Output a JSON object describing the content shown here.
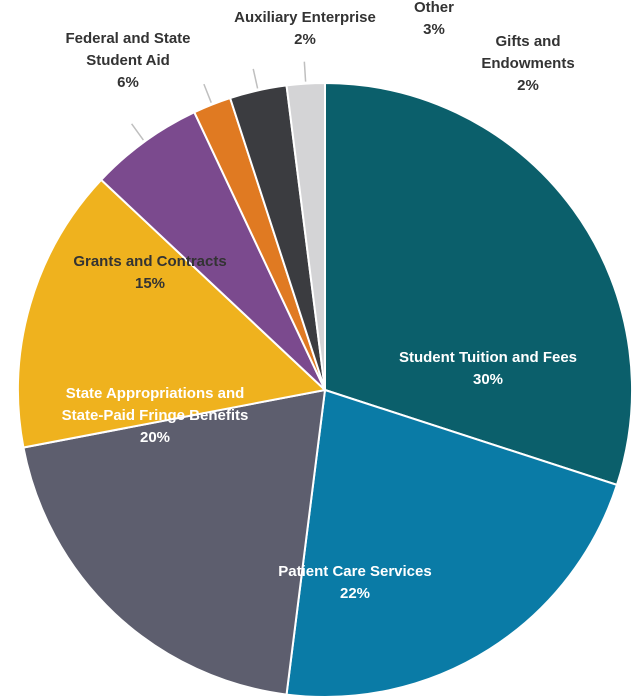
{
  "chart_data": {
    "type": "pie",
    "start_angle_deg": 0,
    "direction": "clockwise",
    "slices": [
      {
        "lines": [
          "Student Tuition and Fees"
        ],
        "value_label": "30%",
        "value": 30,
        "color": "#0b5f6b",
        "label_color": "#ffffff",
        "label_side": "inside"
      },
      {
        "lines": [
          "Patient Care Services"
        ],
        "value_label": "22%",
        "value": 22,
        "color": "#0a7ba6",
        "label_color": "#ffffff",
        "label_side": "inside"
      },
      {
        "lines": [
          "State Appropriations and",
          "State-Paid Fringe Benefits"
        ],
        "value_label": "20%",
        "value": 20,
        "color": "#5d5e6e",
        "label_color": "#ffffff",
        "label_side": "inside"
      },
      {
        "lines": [
          "Grants and Contracts"
        ],
        "value_label": "15%",
        "value": 15,
        "color": "#efb21e",
        "label_color": "#333333",
        "label_side": "inside"
      },
      {
        "lines": [
          "Federal and State",
          "Student Aid"
        ],
        "value_label": "6%",
        "value": 6,
        "color": "#7b4a8e",
        "label_color": "#333333",
        "label_side": "outside"
      },
      {
        "lines": [
          "Auxiliary Enterprise"
        ],
        "value_label": "2%",
        "value": 2,
        "color": "#e07a22",
        "label_color": "#333333",
        "label_side": "outside"
      },
      {
        "lines": [
          "Other"
        ],
        "value_label": "3%",
        "value": 3,
        "color": "#3b3c40",
        "label_color": "#333333",
        "label_side": "outside"
      },
      {
        "lines": [
          "Gifts and",
          "Endowments"
        ],
        "value_label": "2%",
        "value": 2,
        "color": "#d4d4d6",
        "label_color": "#333333",
        "label_side": "outside"
      }
    ]
  }
}
